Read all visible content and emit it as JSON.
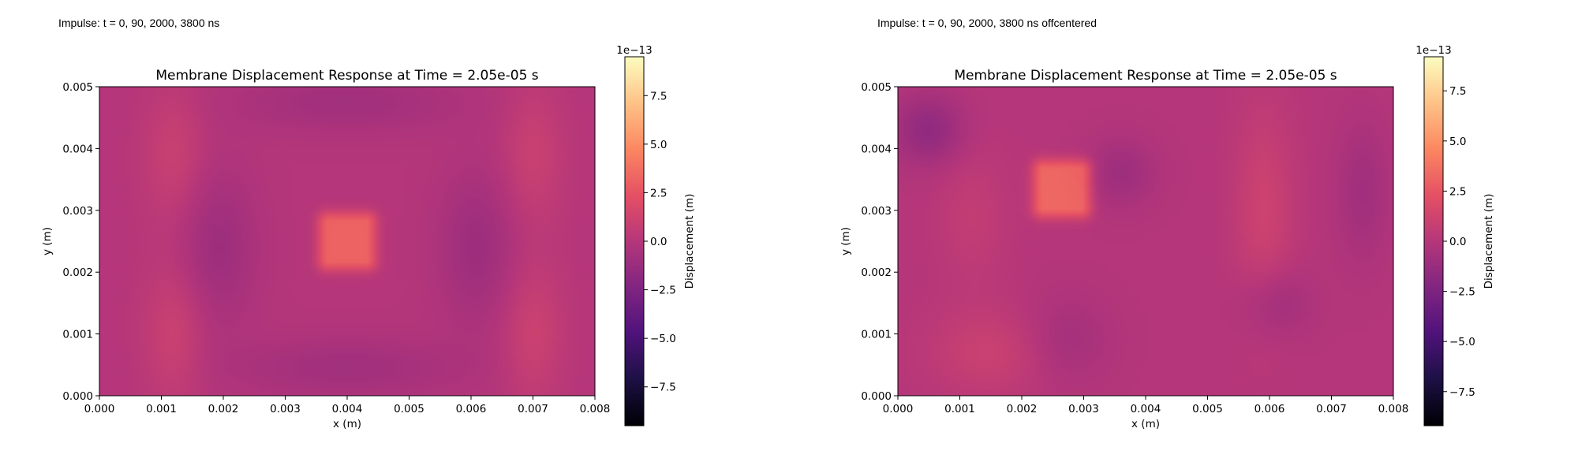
{
  "captions": [
    "Impulse: t = 0, 90, 2000, 3800 ns",
    "Impulse: t = 0, 90, 2000, 3800 ns offcentered"
  ],
  "colormap": {
    "name": "magma",
    "stops": [
      "#000004",
      "#1c1044",
      "#4f127b",
      "#812581",
      "#b5367a",
      "#e55064",
      "#fb8761",
      "#fec287",
      "#fcfdbf"
    ]
  },
  "chart_data": [
    {
      "type": "heatmap",
      "title": "Membrane Displacement Response at Time = 2.05e-05 s",
      "xlabel": "x (m)",
      "ylabel": "y (m)",
      "xlim": [
        0,
        0.008
      ],
      "ylim": [
        0,
        0.005
      ],
      "x_ticks": [
        "0.000",
        "0.001",
        "0.002",
        "0.003",
        "0.004",
        "0.005",
        "0.006",
        "0.007",
        "0.008"
      ],
      "y_ticks": [
        "0.000",
        "0.001",
        "0.002",
        "0.003",
        "0.004",
        "0.005"
      ],
      "colorbar": {
        "label": "Displacement (m)",
        "exponent_label": "1e−13",
        "range": [
          -9.5,
          9.5
        ],
        "ticks": [
          {
            "value": 7.5,
            "label": "7.5"
          },
          {
            "value": 5.0,
            "label": "5.0"
          },
          {
            "value": 2.5,
            "label": "2.5"
          },
          {
            "value": 0.0,
            "label": "0.0"
          },
          {
            "value": -2.5,
            "label": "−2.5"
          },
          {
            "value": -5.0,
            "label": "−5.0"
          },
          {
            "value": -7.5,
            "label": "−7.5"
          }
        ]
      },
      "field": {
        "base": 0.0,
        "features": [
          {
            "kind": "square",
            "x": 0.004,
            "y": 0.0025,
            "half": 0.0003,
            "amp": 3.2
          },
          {
            "kind": "blob",
            "x": 0.0012,
            "y": 0.0039,
            "sx": 0.00035,
            "sy": 0.0008,
            "amp": 1.0
          },
          {
            "kind": "blob",
            "x": 0.0012,
            "y": 0.001,
            "sx": 0.00035,
            "sy": 0.0008,
            "amp": 1.1
          },
          {
            "kind": "blob",
            "x": 0.007,
            "y": 0.0039,
            "sx": 0.00035,
            "sy": 0.0008,
            "amp": 1.0
          },
          {
            "kind": "blob",
            "x": 0.007,
            "y": 0.001,
            "sx": 0.00035,
            "sy": 0.0008,
            "amp": 1.1
          },
          {
            "kind": "blob",
            "x": 0.0019,
            "y": 0.0024,
            "sx": 0.00045,
            "sy": 0.0009,
            "amp": -1.1
          },
          {
            "kind": "blob",
            "x": 0.0061,
            "y": 0.0024,
            "sx": 0.00045,
            "sy": 0.0009,
            "amp": -1.1
          },
          {
            "kind": "blob",
            "x": 0.004,
            "y": 0.00475,
            "sx": 0.0013,
            "sy": 0.00035,
            "amp": -0.9
          },
          {
            "kind": "blob",
            "x": 0.004,
            "y": 0.00045,
            "sx": 0.0013,
            "sy": 0.00035,
            "amp": -0.9
          }
        ]
      }
    },
    {
      "type": "heatmap",
      "title": "Membrane Displacement Response at Time = 2.05e-05 s",
      "xlabel": "x (m)",
      "ylabel": "y (m)",
      "xlim": [
        0,
        0.008
      ],
      "ylim": [
        0,
        0.005
      ],
      "x_ticks": [
        "0.000",
        "0.001",
        "0.002",
        "0.003",
        "0.004",
        "0.005",
        "0.006",
        "0.007",
        "0.008"
      ],
      "y_ticks": [
        "0.000",
        "0.001",
        "0.002",
        "0.003",
        "0.004",
        "0.005"
      ],
      "colorbar": {
        "label": "Displacement (m)",
        "exponent_label": "1e−13",
        "range": [
          -9.2,
          9.2
        ],
        "ticks": [
          {
            "value": 7.5,
            "label": "7.5"
          },
          {
            "value": 5.0,
            "label": "5.0"
          },
          {
            "value": 2.5,
            "label": "2.5"
          },
          {
            "value": 0.0,
            "label": "0.0"
          },
          {
            "value": -2.5,
            "label": "−2.5"
          },
          {
            "value": -5.0,
            "label": "−5.0"
          },
          {
            "value": -7.5,
            "label": "−7.5"
          }
        ]
      },
      "field": {
        "base": 0.0,
        "features": [
          {
            "kind": "square",
            "x": 0.00265,
            "y": 0.00335,
            "half": 0.0003,
            "amp": 3.3
          },
          {
            "kind": "blob",
            "x": 0.0005,
            "y": 0.0043,
            "sx": 0.0004,
            "sy": 0.0004,
            "amp": -1.6
          },
          {
            "kind": "blob",
            "x": 0.0036,
            "y": 0.0036,
            "sx": 0.0004,
            "sy": 0.0004,
            "amp": -1.0
          },
          {
            "kind": "blob",
            "x": 0.0059,
            "y": 0.003,
            "sx": 0.00035,
            "sy": 0.0012,
            "amp": 1.1
          },
          {
            "kind": "blob",
            "x": 0.0075,
            "y": 0.0033,
            "sx": 0.0003,
            "sy": 0.0008,
            "amp": -0.9
          },
          {
            "kind": "blob",
            "x": 0.0015,
            "y": 0.0007,
            "sx": 0.0007,
            "sy": 0.0005,
            "amp": 1.0
          },
          {
            "kind": "blob",
            "x": 0.0027,
            "y": 0.0009,
            "sx": 0.0005,
            "sy": 0.0005,
            "amp": -0.8
          },
          {
            "kind": "blob",
            "x": 0.0061,
            "y": 0.0015,
            "sx": 0.0004,
            "sy": 0.0004,
            "amp": -1.0
          },
          {
            "kind": "blob",
            "x": 0.0012,
            "y": 0.0029,
            "sx": 0.0004,
            "sy": 0.0008,
            "amp": 0.6
          }
        ]
      }
    }
  ]
}
